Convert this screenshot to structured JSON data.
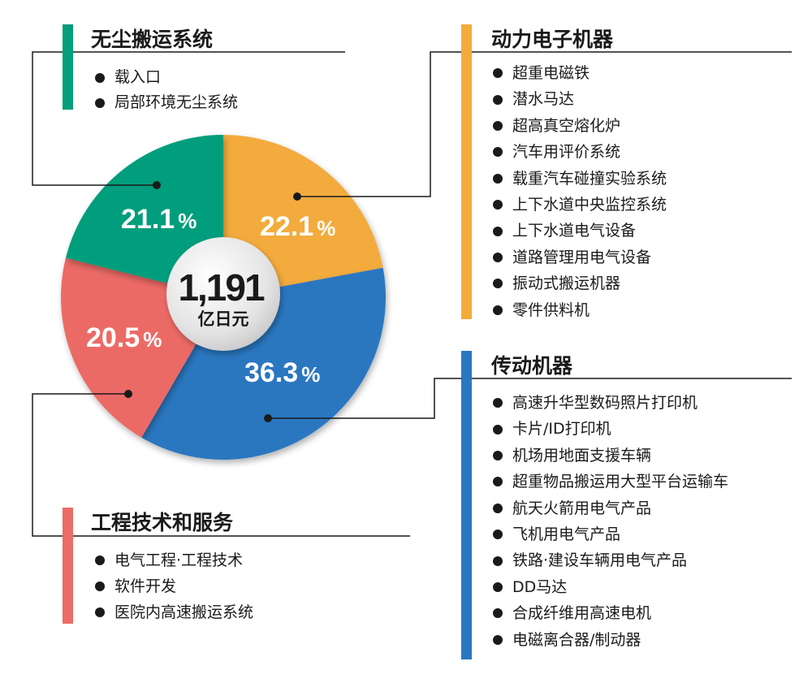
{
  "chart_data": {
    "type": "pie",
    "center_value": "1,191",
    "center_unit": "亿日元",
    "slices": [
      {
        "name": "动力电子机器",
        "value": 22.1,
        "label": "22.1",
        "color": "#f3ab3c"
      },
      {
        "name": "传动机器",
        "value": 36.3,
        "label": "36.3",
        "color": "#2a77c0"
      },
      {
        "name": "工程技术和服务",
        "value": 20.5,
        "label": "20.5",
        "color": "#ec6b66"
      },
      {
        "name": "无尘搬运系统",
        "value": 21.1,
        "label": "21.1",
        "color": "#039e7b"
      }
    ],
    "percent_sign": "%"
  },
  "groups": {
    "green": {
      "title": "无尘搬运系统",
      "items": [
        "载入口",
        "局部环境无尘系统"
      ]
    },
    "orange": {
      "title": "动力电子机器",
      "items": [
        "超重电磁铁",
        "潜水马达",
        "超高真空熔化炉",
        "汽车用评价系统",
        "载重汽车碰撞实验系统",
        "上下水道中央监控系统",
        "上下水道电气设备",
        "道路管理用电气设备",
        "振动式搬运机器",
        "零件供料机"
      ]
    },
    "blue": {
      "title": "传动机器",
      "items": [
        "高速升华型数码照片打印机",
        "卡片/ID打印机",
        "机场用地面支援车辆",
        "超重物品搬运用大型平台运输车",
        "航天火箭用电气产品",
        "飞机用电气产品",
        "铁路·建设车辆用电气产品",
        "DD马达",
        "合成纤维用高速电机",
        "电磁离合器/制动器"
      ]
    },
    "red": {
      "title": "工程技术和服务",
      "items": [
        "电气工程·工程技术",
        "软件开发",
        "医院内高速搬运系统"
      ]
    }
  }
}
